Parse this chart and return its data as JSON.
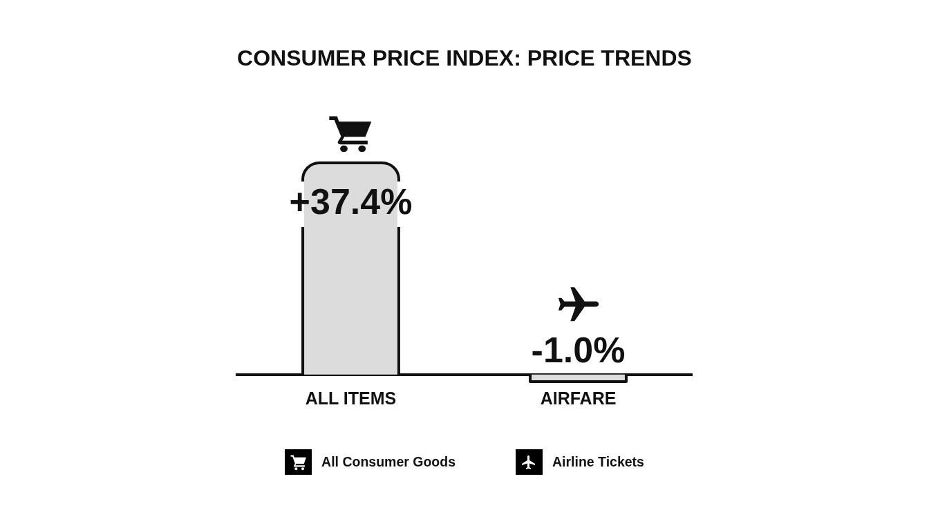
{
  "chart_data": {
    "type": "bar",
    "title": "CONSUMER PRICE INDEX: PRICE TRENDS",
    "categories": [
      "ALL ITEMS",
      "AIRFARE"
    ],
    "values": [
      37.4,
      -1.0
    ],
    "value_labels": [
      "+37.4%",
      "-1.0%"
    ],
    "color": "#dcdcdc",
    "annotations": [
      "All Consumer Goods",
      "Airline Tickets"
    ]
  }
}
